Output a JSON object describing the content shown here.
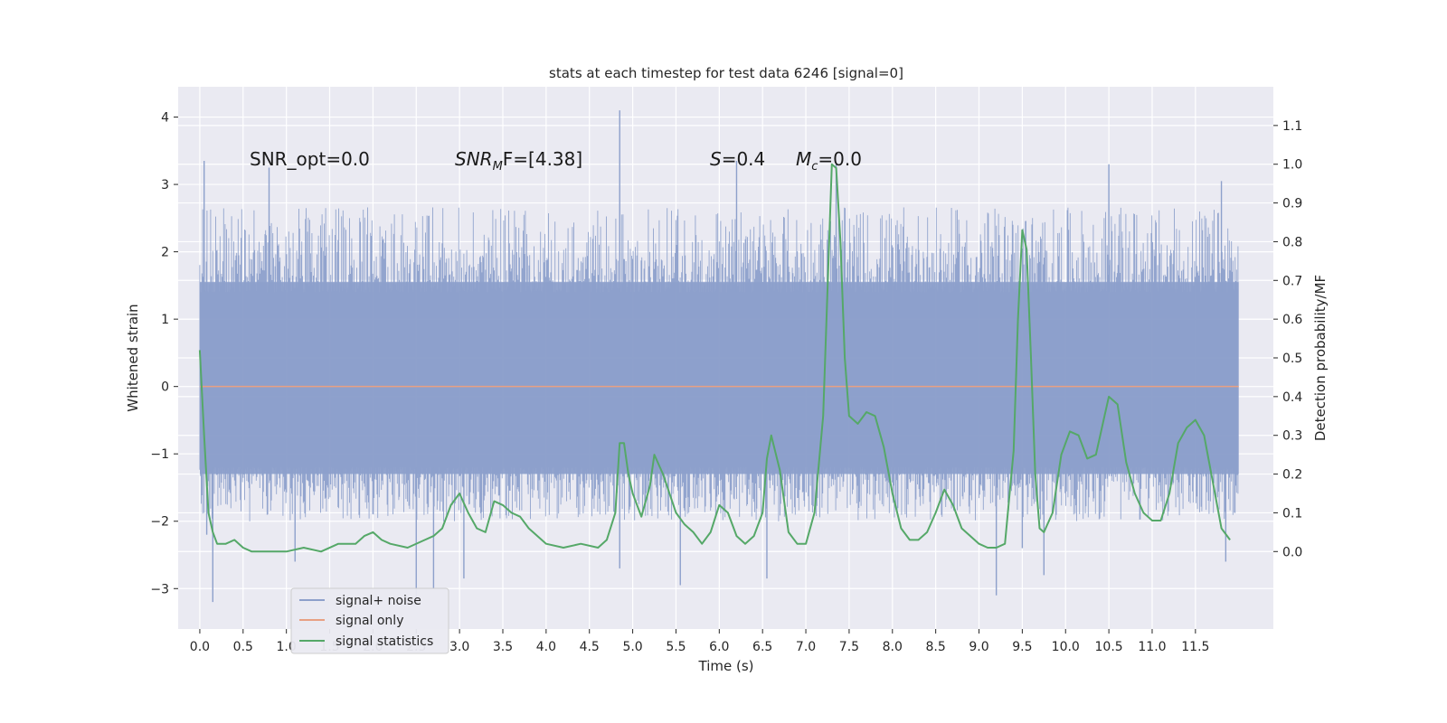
{
  "chart_data": {
    "type": "line",
    "title": "stats at each timestep for test data 6246 [signal=0]",
    "xlabel": "Time (s)",
    "ylabel": "Whitened strain",
    "y2label": "Detection probability/MF",
    "xlim": [
      -0.25,
      12.4
    ],
    "ylim": [
      -3.6,
      4.45
    ],
    "y2lim": [
      -0.2,
      1.2
    ],
    "x_ticks": [
      0.0,
      0.5,
      1.0,
      1.5,
      2.0,
      2.5,
      3.0,
      3.5,
      4.0,
      4.5,
      5.0,
      5.5,
      6.0,
      6.5,
      7.0,
      7.5,
      8.0,
      8.5,
      9.0,
      9.5,
      10.0,
      10.5,
      11.0,
      11.5
    ],
    "x_tick_labels": [
      "0.0",
      "0.5",
      "1.0",
      "1.5",
      "2.0",
      "2.5",
      "3.0",
      "3.5",
      "4.0",
      "4.5",
      "5.0",
      "5.5",
      "6.0",
      "6.5",
      "7.0",
      "7.5",
      "8.0",
      "8.5",
      "9.0",
      "9.5",
      "10.0",
      "10.5",
      "11.0",
      "11.5"
    ],
    "y_ticks": [
      4,
      3,
      2,
      1,
      0,
      -1,
      -2,
      -3
    ],
    "y_tick_labels": [
      "4",
      "3",
      "2",
      "1",
      "0",
      "−1",
      "−2",
      "−3"
    ],
    "y2_ticks": [
      1.1,
      1.0,
      0.9,
      0.8,
      0.7,
      0.6,
      0.5,
      0.4,
      0.3,
      0.2,
      0.1,
      0.0
    ],
    "y2_tick_labels": [
      "1.1",
      "1.0",
      "0.9",
      "0.8",
      "0.7",
      "0.6",
      "0.5",
      "0.4",
      "0.3",
      "0.2",
      "0.1",
      "0.0"
    ],
    "grid": true,
    "legend_position": "lower-left",
    "series": [
      {
        "name": "signal+ noise",
        "color": "#8da0cb",
        "x_range": [
          0.0,
          12.0
        ],
        "envelope_typical": [
          -1.9,
          2.6
        ],
        "peaks": [
          {
            "x": 0.05,
            "y": 3.35
          },
          {
            "x": 0.08,
            "y": -2.2
          },
          {
            "x": 0.15,
            "y": -3.2
          },
          {
            "x": 0.8,
            "y": 3.25
          },
          {
            "x": 1.1,
            "y": -2.6
          },
          {
            "x": 2.5,
            "y": -3.2
          },
          {
            "x": 2.7,
            "y": -3.0
          },
          {
            "x": 3.05,
            "y": -2.85
          },
          {
            "x": 4.85,
            "y": 4.1
          },
          {
            "x": 4.85,
            "y": -2.7
          },
          {
            "x": 5.55,
            "y": -2.95
          },
          {
            "x": 6.2,
            "y": 3.35
          },
          {
            "x": 6.55,
            "y": -2.85
          },
          {
            "x": 7.35,
            "y": 3.3
          },
          {
            "x": 9.2,
            "y": -3.1
          },
          {
            "x": 9.5,
            "y": -2.4
          },
          {
            "x": 9.75,
            "y": -2.8
          },
          {
            "x": 10.5,
            "y": 3.3
          },
          {
            "x": 11.8,
            "y": 3.05
          },
          {
            "x": 11.85,
            "y": -2.6
          }
        ]
      },
      {
        "name": "signal only",
        "color": "#e8a083",
        "x": [
          0.0,
          12.0
        ],
        "y": [
          0.0,
          0.0
        ]
      },
      {
        "name": "signal statistics",
        "color": "#55a868",
        "axis": "right",
        "x": [
          0.0,
          0.05,
          0.1,
          0.15,
          0.2,
          0.3,
          0.4,
          0.5,
          0.6,
          0.8,
          1.0,
          1.2,
          1.4,
          1.6,
          1.8,
          1.9,
          2.0,
          2.1,
          2.2,
          2.4,
          2.6,
          2.7,
          2.8,
          2.9,
          3.0,
          3.1,
          3.2,
          3.3,
          3.4,
          3.5,
          3.6,
          3.7,
          3.8,
          4.0,
          4.2,
          4.4,
          4.6,
          4.7,
          4.8,
          4.85,
          4.9,
          4.95,
          5.0,
          5.1,
          5.2,
          5.25,
          5.35,
          5.5,
          5.6,
          5.7,
          5.8,
          5.9,
          6.0,
          6.1,
          6.2,
          6.3,
          6.4,
          6.5,
          6.55,
          6.6,
          6.7,
          6.8,
          6.9,
          7.0,
          7.1,
          7.2,
          7.3,
          7.35,
          7.4,
          7.45,
          7.5,
          7.6,
          7.7,
          7.8,
          7.9,
          8.0,
          8.1,
          8.2,
          8.3,
          8.4,
          8.5,
          8.6,
          8.7,
          8.8,
          8.9,
          9.0,
          9.1,
          9.2,
          9.3,
          9.4,
          9.45,
          9.5,
          9.55,
          9.6,
          9.65,
          9.7,
          9.75,
          9.85,
          9.95,
          10.05,
          10.15,
          10.25,
          10.35,
          10.45,
          10.5,
          10.6,
          10.7,
          10.8,
          10.9,
          11.0,
          11.1,
          11.2,
          11.3,
          11.4,
          11.5,
          11.6,
          11.7,
          11.8,
          11.9
        ],
        "y": [
          0.52,
          0.3,
          0.1,
          0.05,
          0.02,
          0.02,
          0.03,
          0.01,
          0.0,
          0.0,
          0.0,
          0.01,
          0.0,
          0.02,
          0.02,
          0.04,
          0.05,
          0.03,
          0.02,
          0.01,
          0.03,
          0.04,
          0.06,
          0.12,
          0.15,
          0.1,
          0.06,
          0.05,
          0.13,
          0.12,
          0.1,
          0.09,
          0.06,
          0.02,
          0.01,
          0.02,
          0.01,
          0.03,
          0.1,
          0.28,
          0.28,
          0.2,
          0.15,
          0.09,
          0.17,
          0.25,
          0.2,
          0.1,
          0.07,
          0.05,
          0.02,
          0.05,
          0.12,
          0.1,
          0.04,
          0.02,
          0.04,
          0.1,
          0.24,
          0.3,
          0.21,
          0.05,
          0.02,
          0.02,
          0.1,
          0.35,
          1.0,
          0.99,
          0.8,
          0.5,
          0.35,
          0.33,
          0.36,
          0.35,
          0.27,
          0.15,
          0.06,
          0.03,
          0.03,
          0.05,
          0.1,
          0.16,
          0.12,
          0.06,
          0.04,
          0.02,
          0.01,
          0.01,
          0.02,
          0.26,
          0.6,
          0.83,
          0.78,
          0.5,
          0.2,
          0.06,
          0.05,
          0.1,
          0.25,
          0.31,
          0.3,
          0.24,
          0.25,
          0.35,
          0.4,
          0.38,
          0.23,
          0.15,
          0.1,
          0.08,
          0.08,
          0.15,
          0.28,
          0.32,
          0.34,
          0.3,
          0.18,
          0.06,
          0.03
        ]
      }
    ],
    "annotations": [
      {
        "text": "SNR_opt=0.0",
        "italic": false
      },
      {
        "text": "SNR",
        "sub": "M",
        "tail": "F=[4.38]",
        "italic": true
      },
      {
        "text": "S",
        "tail": "=0.4",
        "italic": true
      },
      {
        "text": "M",
        "sub": "c",
        "tail": "=0.0",
        "italic": true
      }
    ]
  }
}
